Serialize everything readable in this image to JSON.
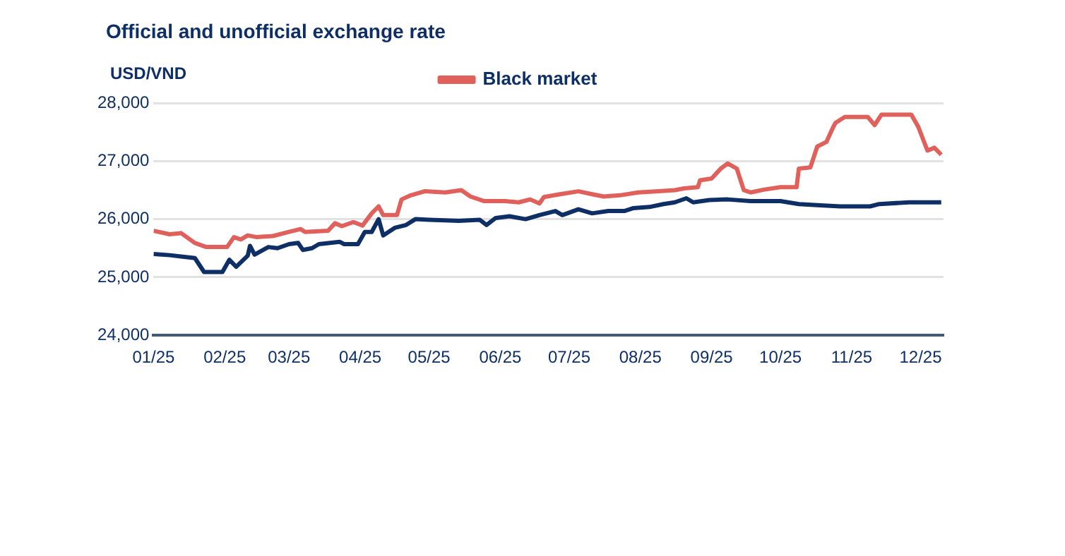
{
  "chart_data": {
    "type": "line",
    "title": "Official and unofficial exchange rate",
    "ylabel": "USD/VND",
    "xlim": [
      "2025-01-01",
      "2025-12-11"
    ],
    "xticks": [
      {
        "value": "2025-01-01",
        "label": "01/25"
      },
      {
        "value": "2025-02-01",
        "label": "02/25"
      },
      {
        "value": "2025-03-01",
        "label": "03/25"
      },
      {
        "value": "2025-04-01",
        "label": "04/25"
      },
      {
        "value": "2025-05-01",
        "label": "05/25"
      },
      {
        "value": "2025-06-01",
        "label": "06/25"
      },
      {
        "value": "2025-07-01",
        "label": "07/25"
      },
      {
        "value": "2025-08-01",
        "label": "08/25"
      },
      {
        "value": "2025-09-01",
        "label": "09/25"
      },
      {
        "value": "2025-10-01",
        "label": "10/25"
      },
      {
        "value": "2025-11-01",
        "label": "11/25"
      },
      {
        "value": "2025-12-01",
        "label": "12/25"
      }
    ],
    "ylim": [
      24000,
      28000
    ],
    "yticks": [
      {
        "value": 24000,
        "label": "24,000"
      },
      {
        "value": 25000,
        "label": "25,000"
      },
      {
        "value": 26000,
        "label": "26,000"
      },
      {
        "value": 27000,
        "label": "27,000"
      },
      {
        "value": 28000,
        "label": "28,000"
      }
    ],
    "grid": "y",
    "legend": "top",
    "marker": "none",
    "line_style": "solid",
    "series": [
      {
        "color": "#0d2f66",
        "x": [
          "2025-01-01",
          "2025-01-08",
          "2025-01-19",
          "2025-01-23",
          "2025-01-31",
          "2025-02-03",
          "2025-02-06",
          "2025-02-11",
          "2025-02-12",
          "2025-02-14",
          "2025-02-20",
          "2025-02-24",
          "2025-03-01",
          "2025-03-05",
          "2025-03-07",
          "2025-03-11",
          "2025-03-14",
          "2025-03-23",
          "2025-03-25",
          "2025-03-31",
          "2025-04-03",
          "2025-04-06",
          "2025-04-09",
          "2025-04-11",
          "2025-04-16",
          "2025-04-21",
          "2025-04-25",
          "2025-05-01",
          "2025-05-14",
          "2025-05-23",
          "2025-05-26",
          "2025-05-30",
          "2025-06-05",
          "2025-06-12",
          "2025-06-18",
          "2025-06-25",
          "2025-06-28",
          "2025-07-05",
          "2025-07-11",
          "2025-07-18",
          "2025-07-25",
          "2025-07-29",
          "2025-08-05",
          "2025-08-11",
          "2025-08-16",
          "2025-08-21",
          "2025-08-24",
          "2025-08-31",
          "2025-09-08",
          "2025-09-18",
          "2025-10-01",
          "2025-10-09",
          "2025-10-17",
          "2025-10-27",
          "2025-11-09",
          "2025-11-13",
          "2025-11-26",
          "2025-12-10"
        ],
        "values": [
          25400,
          25380,
          25330,
          25090,
          25090,
          25300,
          25180,
          25370,
          25540,
          25390,
          25520,
          25500,
          25570,
          25590,
          25470,
          25500,
          25570,
          25610,
          25570,
          25570,
          25780,
          25780,
          26000,
          25720,
          25850,
          25900,
          26000,
          25990,
          25970,
          25990,
          25900,
          26020,
          26050,
          26000,
          26070,
          26140,
          26070,
          26170,
          26100,
          26140,
          26140,
          26190,
          26210,
          26260,
          26290,
          26360,
          26290,
          26330,
          26340,
          26310,
          26310,
          26260,
          26240,
          26220,
          26220,
          26260,
          26290,
          26290
        ]
      },
      {
        "name": "Black market",
        "color": "#e0605c",
        "x": [
          "2025-01-01",
          "2025-01-08",
          "2025-01-13",
          "2025-01-19",
          "2025-01-24",
          "2025-02-02",
          "2025-02-05",
          "2025-02-08",
          "2025-02-11",
          "2025-02-15",
          "2025-02-22",
          "2025-03-01",
          "2025-03-06",
          "2025-03-08",
          "2025-03-18",
          "2025-03-21",
          "2025-03-24",
          "2025-03-29",
          "2025-04-02",
          "2025-04-06",
          "2025-04-09",
          "2025-04-11",
          "2025-04-17",
          "2025-04-19",
          "2025-04-23",
          "2025-04-29",
          "2025-05-08",
          "2025-05-15",
          "2025-05-19",
          "2025-05-25",
          "2025-06-03",
          "2025-06-09",
          "2025-06-14",
          "2025-06-18",
          "2025-06-20",
          "2025-06-27",
          "2025-07-05",
          "2025-07-11",
          "2025-07-16",
          "2025-07-23",
          "2025-07-31",
          "2025-08-09",
          "2025-08-16",
          "2025-08-20",
          "2025-08-26",
          "2025-08-27",
          "2025-09-01",
          "2025-09-05",
          "2025-09-08",
          "2025-09-12",
          "2025-09-15",
          "2025-09-18",
          "2025-09-24",
          "2025-10-01",
          "2025-10-08",
          "2025-10-09",
          "2025-10-14",
          "2025-10-17",
          "2025-10-21",
          "2025-10-24",
          "2025-10-25",
          "2025-10-29",
          "2025-11-08",
          "2025-11-11",
          "2025-11-14",
          "2025-11-27",
          "2025-11-30",
          "2025-12-04",
          "2025-12-07",
          "2025-12-10"
        ],
        "values": [
          25800,
          25740,
          25760,
          25590,
          25520,
          25520,
          25690,
          25650,
          25720,
          25690,
          25710,
          25780,
          25830,
          25780,
          25800,
          25930,
          25880,
          25950,
          25890,
          26100,
          26220,
          26070,
          26070,
          26340,
          26410,
          26480,
          26460,
          26500,
          26390,
          26310,
          26310,
          26290,
          26340,
          26270,
          26380,
          26430,
          26480,
          26430,
          26390,
          26410,
          26460,
          26480,
          26500,
          26530,
          26550,
          26670,
          26700,
          26870,
          26960,
          26870,
          26500,
          26460,
          26510,
          26550,
          26550,
          26870,
          26890,
          27250,
          27330,
          27590,
          27660,
          27760,
          27760,
          27620,
          27800,
          27800,
          27590,
          27180,
          27230,
          27110
        ]
      }
    ]
  }
}
